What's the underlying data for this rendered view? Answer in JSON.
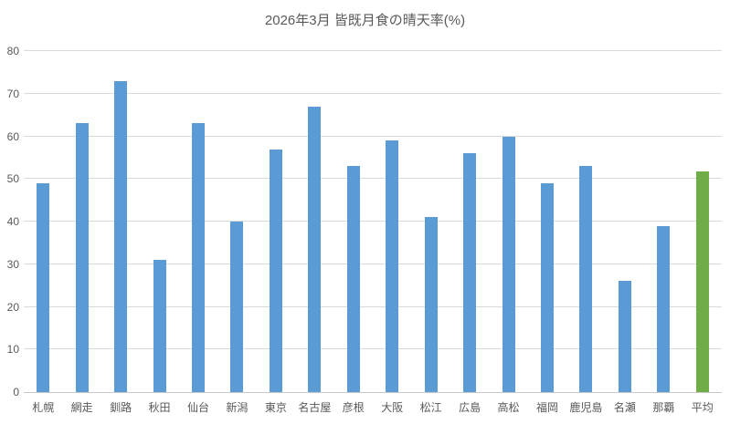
{
  "title": "2026年3月 皆既月食の晴天率(%)",
  "chart_data": {
    "type": "bar",
    "title": "2026年3月 皆既月食の晴天率(%)",
    "categories": [
      "札幌",
      "網走",
      "釧路",
      "秋田",
      "仙台",
      "新潟",
      "東京",
      "名古屋",
      "彦根",
      "大阪",
      "松江",
      "広島",
      "高松",
      "福岡",
      "鹿児島",
      "名瀬",
      "那覇",
      "平均"
    ],
    "values": [
      49,
      63,
      73,
      31,
      63,
      40,
      57,
      67,
      53,
      59,
      41,
      56,
      60,
      49,
      53,
      26,
      39,
      51.7
    ],
    "xlabel": "",
    "ylabel": "",
    "ylim": [
      0,
      80
    ],
    "yticks": [
      0,
      10,
      20,
      30,
      40,
      50,
      60,
      70,
      80
    ],
    "grid": "horizontal",
    "legend": "none",
    "colors": {
      "bar_default": "#5b9bd5",
      "bar_highlight": "#70ad47",
      "gridline": "#d9d9d9",
      "axis_line": "#c9c9c9",
      "text": "#595959",
      "background": "#ffffff"
    },
    "highlight_index": 17
  }
}
